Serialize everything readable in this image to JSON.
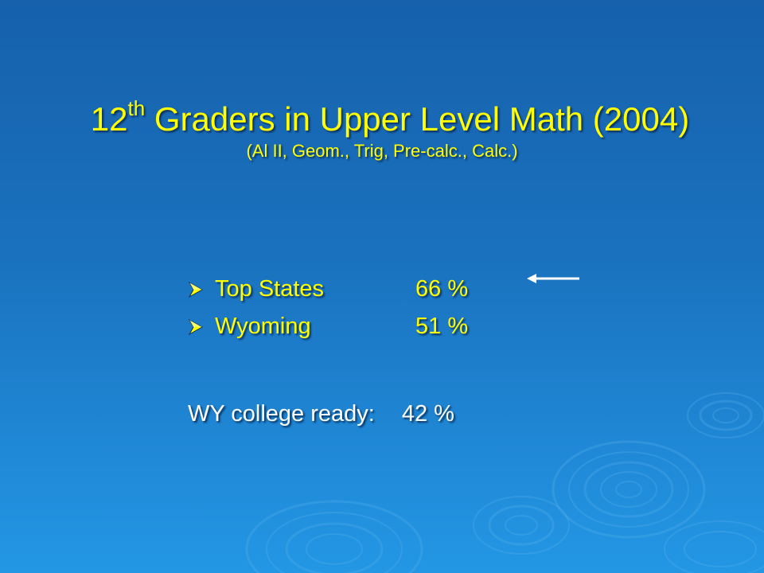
{
  "slide": {
    "title_number": "12",
    "title_superscript": "th",
    "title_rest": " Graders in Upper Level Math (2004)",
    "subtitle": "(Al II, Geom., Trig, Pre-calc., Calc.)",
    "bullets": [
      {
        "label": "Top States",
        "value": "66 %"
      },
      {
        "label": "Wyoming",
        "value": "51 %"
      }
    ],
    "footer_label": "WY college ready:",
    "footer_value": "42 %"
  },
  "colors": {
    "title_text": "#ffff00",
    "footer_text": "#ffffff",
    "background_top": "#1660ac",
    "background_bottom": "#2397e4"
  },
  "icons": {
    "bullet": "arrowhead-bullet-icon",
    "pointer": "left-arrow-icon"
  }
}
